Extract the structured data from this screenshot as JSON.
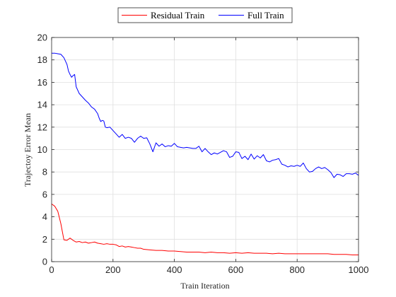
{
  "chart_data": {
    "type": "line",
    "xlabel": "Train Iteration",
    "ylabel": "Trajectoy Error Mean",
    "xlim": [
      0,
      1000
    ],
    "ylim": [
      0,
      20
    ],
    "xticks": [
      0,
      200,
      400,
      600,
      800,
      1000
    ],
    "yticks": [
      0,
      2,
      4,
      6,
      8,
      10,
      12,
      14,
      16,
      18,
      20
    ],
    "grid": true,
    "legend_position": "top-outside",
    "series": [
      {
        "name": "Residual Train",
        "color": "#ff0000",
        "x": [
          0,
          10,
          20,
          30,
          40,
          50,
          60,
          70,
          80,
          90,
          100,
          110,
          120,
          130,
          140,
          150,
          160,
          170,
          180,
          190,
          200,
          210,
          220,
          230,
          240,
          250,
          260,
          270,
          280,
          290,
          300,
          320,
          340,
          360,
          380,
          400,
          420,
          440,
          460,
          480,
          500,
          520,
          540,
          560,
          580,
          600,
          620,
          640,
          660,
          680,
          700,
          720,
          740,
          760,
          780,
          800,
          820,
          840,
          860,
          880,
          900,
          920,
          940,
          960,
          980,
          1000
        ],
        "y": [
          5.15,
          4.95,
          4.5,
          3.4,
          1.95,
          1.9,
          2.1,
          1.9,
          1.75,
          1.8,
          1.7,
          1.75,
          1.65,
          1.7,
          1.75,
          1.65,
          1.6,
          1.55,
          1.6,
          1.55,
          1.55,
          1.5,
          1.35,
          1.4,
          1.3,
          1.35,
          1.3,
          1.25,
          1.2,
          1.2,
          1.1,
          1.05,
          1.0,
          1.0,
          0.95,
          0.95,
          0.9,
          0.85,
          0.85,
          0.85,
          0.8,
          0.85,
          0.8,
          0.8,
          0.75,
          0.8,
          0.75,
          0.8,
          0.75,
          0.75,
          0.75,
          0.7,
          0.75,
          0.7,
          0.7,
          0.7,
          0.7,
          0.7,
          0.7,
          0.7,
          0.7,
          0.65,
          0.65,
          0.65,
          0.6,
          0.6
        ]
      },
      {
        "name": "Full Train",
        "color": "#0000ff",
        "x": [
          0,
          10,
          20,
          30,
          40,
          50,
          55,
          60,
          65,
          70,
          75,
          80,
          90,
          100,
          110,
          120,
          130,
          140,
          150,
          155,
          160,
          165,
          170,
          175,
          180,
          190,
          200,
          210,
          220,
          230,
          240,
          250,
          260,
          270,
          280,
          290,
          300,
          310,
          320,
          330,
          340,
          350,
          360,
          370,
          380,
          390,
          400,
          410,
          420,
          430,
          440,
          450,
          460,
          470,
          480,
          490,
          500,
          510,
          520,
          530,
          540,
          550,
          560,
          570,
          580,
          590,
          600,
          610,
          620,
          630,
          640,
          650,
          660,
          670,
          680,
          690,
          700,
          710,
          720,
          730,
          740,
          750,
          760,
          770,
          780,
          790,
          800,
          810,
          820,
          830,
          840,
          850,
          860,
          870,
          880,
          890,
          900,
          910,
          920,
          930,
          940,
          950,
          960,
          970,
          980,
          990,
          1000
        ],
        "y": [
          18.6,
          18.6,
          18.55,
          18.5,
          18.2,
          17.6,
          17.0,
          16.7,
          16.45,
          16.6,
          16.7,
          15.6,
          15.0,
          14.7,
          14.4,
          14.15,
          13.8,
          13.6,
          13.2,
          12.8,
          12.5,
          12.6,
          12.55,
          12.0,
          11.95,
          12.0,
          11.7,
          11.4,
          11.1,
          11.35,
          11.0,
          11.1,
          11.0,
          10.65,
          11.0,
          11.2,
          11.0,
          11.05,
          10.5,
          9.8,
          10.6,
          10.3,
          10.5,
          10.25,
          10.35,
          10.3,
          10.55,
          10.25,
          10.2,
          10.15,
          10.2,
          10.15,
          10.1,
          10.1,
          10.3,
          9.8,
          10.1,
          9.8,
          9.55,
          9.7,
          9.6,
          9.75,
          9.9,
          9.8,
          9.3,
          9.4,
          9.8,
          9.75,
          9.2,
          9.4,
          9.1,
          9.6,
          9.15,
          9.45,
          9.25,
          9.55,
          9.0,
          8.9,
          9.05,
          9.1,
          9.2,
          8.7,
          8.6,
          8.45,
          8.55,
          8.5,
          8.6,
          8.5,
          8.8,
          8.3,
          8.0,
          8.05,
          8.3,
          8.45,
          8.3,
          8.4,
          8.2,
          7.95,
          7.5,
          7.8,
          7.75,
          7.6,
          7.85,
          7.85,
          7.8,
          7.9,
          7.7
        ]
      }
    ]
  }
}
